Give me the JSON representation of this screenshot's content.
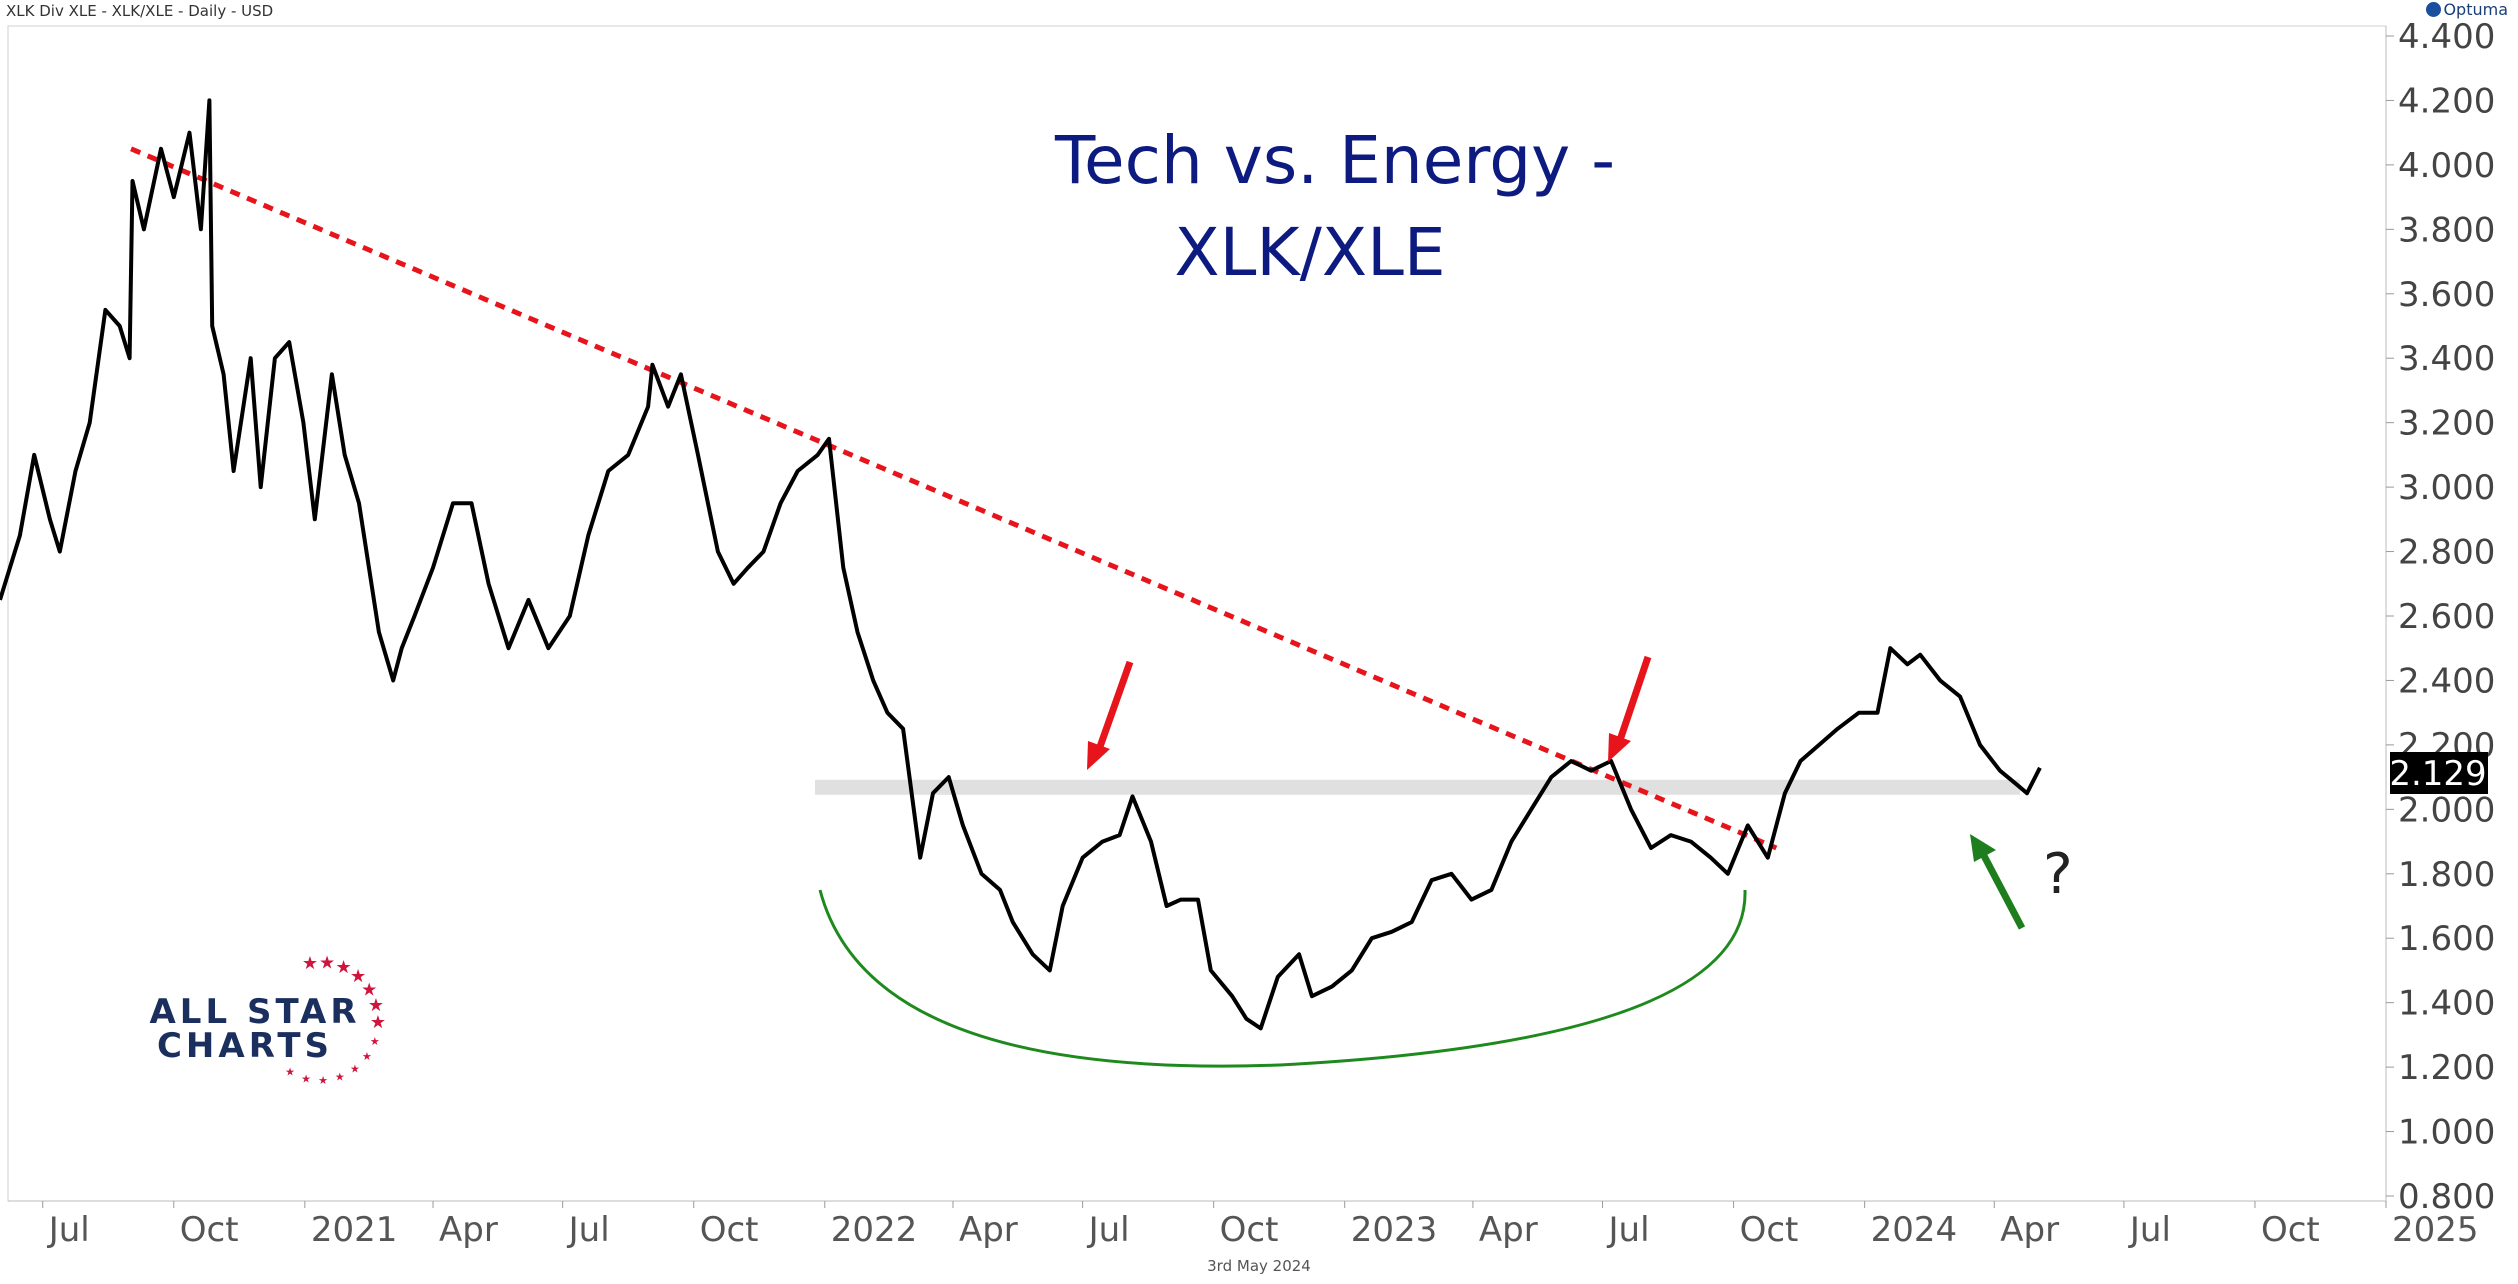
{
  "header": "XLK Div XLE - XLK/XLE - Daily - USD",
  "brand": "Optuma",
  "date_line": "3rd May 2024",
  "annotations": {
    "title_line1": "Tech vs. Energy -",
    "title_line2": "XLK/XLE",
    "question": "?"
  },
  "logo": {
    "line1": "ALL STAR",
    "line2": "CHARTS"
  },
  "colors": {
    "line": "#000000",
    "trend": "#e8141b",
    "arc": "#1e8a1e",
    "title": "#0d1a80",
    "up_arrow": "#1e7e1e",
    "band": "#e0e0e0",
    "logo": "#1b2f5e",
    "stars": "#d0143c"
  },
  "chart_data": {
    "type": "line",
    "title": "Tech vs. Energy - XLK/XLE",
    "ylim": [
      0.8,
      4.4
    ],
    "y_ticks": [
      "4.400",
      "4.200",
      "4.000",
      "3.800",
      "3.600",
      "3.400",
      "3.200",
      "3.000",
      "2.800",
      "2.600",
      "2.400",
      "2.200",
      "2.000",
      "1.800",
      "1.600",
      "1.400",
      "1.200",
      "1.000",
      "0.800"
    ],
    "x_ticks": [
      "Jul",
      "Oct",
      "2021",
      "Apr",
      "Jul",
      "Oct",
      "2022",
      "Apr",
      "Jul",
      "Oct",
      "2023",
      "Apr",
      "Jul",
      "Oct",
      "2024",
      "Apr",
      "Jul",
      "Oct",
      "2025"
    ],
    "last_value": "2.129",
    "support_level": 2.07,
    "trendline": [
      {
        "x": "2020-09-01",
        "y": 4.05
      },
      {
        "x": "2023-10-31",
        "y": 1.88
      }
    ],
    "series": [
      {
        "points": [
          [
            "2020-06-01",
            2.65
          ],
          [
            "2020-06-15",
            2.85
          ],
          [
            "2020-06-25",
            3.1
          ],
          [
            "2020-07-06",
            2.9
          ],
          [
            "2020-07-13",
            2.8
          ],
          [
            "2020-07-24",
            3.05
          ],
          [
            "2020-08-03",
            3.2
          ],
          [
            "2020-08-14",
            3.55
          ],
          [
            "2020-08-24",
            3.5
          ],
          [
            "2020-08-31",
            3.4
          ],
          [
            "2020-09-02",
            3.95
          ],
          [
            "2020-09-10",
            3.8
          ],
          [
            "2020-09-22",
            4.05
          ],
          [
            "2020-10-01",
            3.9
          ],
          [
            "2020-10-12",
            4.1
          ],
          [
            "2020-10-20",
            3.8
          ],
          [
            "2020-10-26",
            4.2
          ],
          [
            "2020-10-28",
            3.5
          ],
          [
            "2020-11-05",
            3.35
          ],
          [
            "2020-11-12",
            3.05
          ],
          [
            "2020-11-24",
            3.4
          ],
          [
            "2020-12-01",
            3.0
          ],
          [
            "2020-12-11",
            3.4
          ],
          [
            "2020-12-21",
            3.45
          ],
          [
            "2020-12-31",
            3.2
          ],
          [
            "2021-01-08",
            2.9
          ],
          [
            "2021-01-20",
            3.35
          ],
          [
            "2021-01-29",
            3.1
          ],
          [
            "2021-02-08",
            2.95
          ],
          [
            "2021-02-22",
            2.55
          ],
          [
            "2021-03-04",
            2.4
          ],
          [
            "2021-03-10",
            2.5
          ],
          [
            "2021-03-19",
            2.6
          ],
          [
            "2021-04-01",
            2.75
          ],
          [
            "2021-04-15",
            2.95
          ],
          [
            "2021-04-28",
            2.95
          ],
          [
            "2021-05-10",
            2.7
          ],
          [
            "2021-05-24",
            2.5
          ],
          [
            "2021-06-07",
            2.65
          ],
          [
            "2021-06-21",
            2.5
          ],
          [
            "2021-07-06",
            2.6
          ],
          [
            "2021-07-19",
            2.85
          ],
          [
            "2021-08-02",
            3.05
          ],
          [
            "2021-08-16",
            3.1
          ],
          [
            "2021-08-30",
            3.25
          ],
          [
            "2021-09-02",
            3.38
          ],
          [
            "2021-09-13",
            3.25
          ],
          [
            "2021-09-22",
            3.35
          ],
          [
            "2021-10-04",
            3.1
          ],
          [
            "2021-10-18",
            2.8
          ],
          [
            "2021-10-29",
            2.7
          ],
          [
            "2021-11-08",
            2.75
          ],
          [
            "2021-11-19",
            2.8
          ],
          [
            "2021-12-01",
            2.95
          ],
          [
            "2021-12-13",
            3.05
          ],
          [
            "2021-12-27",
            3.1
          ],
          [
            "2022-01-04",
            3.15
          ],
          [
            "2022-01-14",
            2.75
          ],
          [
            "2022-01-24",
            2.55
          ],
          [
            "2022-02-04",
            2.4
          ],
          [
            "2022-02-14",
            2.3
          ],
          [
            "2022-02-25",
            2.25
          ],
          [
            "2022-03-09",
            1.85
          ],
          [
            "2022-03-18",
            2.05
          ],
          [
            "2022-03-29",
            2.1
          ],
          [
            "2022-04-08",
            1.95
          ],
          [
            "2022-04-21",
            1.8
          ],
          [
            "2022-05-04",
            1.75
          ],
          [
            "2022-05-13",
            1.65
          ],
          [
            "2022-05-27",
            1.55
          ],
          [
            "2022-06-08",
            1.5
          ],
          [
            "2022-06-17",
            1.7
          ],
          [
            "2022-07-01",
            1.85
          ],
          [
            "2022-07-15",
            1.9
          ],
          [
            "2022-07-27",
            1.92
          ],
          [
            "2022-08-05",
            2.04
          ],
          [
            "2022-08-18",
            1.9
          ],
          [
            "2022-08-29",
            1.7
          ],
          [
            "2022-09-08",
            1.72
          ],
          [
            "2022-09-20",
            1.72
          ],
          [
            "2022-09-29",
            1.5
          ],
          [
            "2022-10-14",
            1.42
          ],
          [
            "2022-10-24",
            1.35
          ],
          [
            "2022-11-03",
            1.32
          ],
          [
            "2022-11-15",
            1.48
          ],
          [
            "2022-11-30",
            1.55
          ],
          [
            "2022-12-09",
            1.42
          ],
          [
            "2022-12-23",
            1.45
          ],
          [
            "2023-01-06",
            1.5
          ],
          [
            "2023-01-20",
            1.6
          ],
          [
            "2023-02-03",
            1.62
          ],
          [
            "2023-02-17",
            1.65
          ],
          [
            "2023-03-03",
            1.78
          ],
          [
            "2023-03-17",
            1.8
          ],
          [
            "2023-03-31",
            1.72
          ],
          [
            "2023-04-14",
            1.75
          ],
          [
            "2023-04-28",
            1.9
          ],
          [
            "2023-05-12",
            2.0
          ],
          [
            "2023-05-26",
            2.1
          ],
          [
            "2023-06-09",
            2.15
          ],
          [
            "2023-06-23",
            2.12
          ],
          [
            "2023-07-07",
            2.15
          ],
          [
            "2023-07-21",
            2.0
          ],
          [
            "2023-08-04",
            1.88
          ],
          [
            "2023-08-18",
            1.92
          ],
          [
            "2023-09-01",
            1.9
          ],
          [
            "2023-09-15",
            1.85
          ],
          [
            "2023-09-27",
            1.8
          ],
          [
            "2023-10-11",
            1.95
          ],
          [
            "2023-10-25",
            1.85
          ],
          [
            "2023-11-06",
            2.05
          ],
          [
            "2023-11-17",
            2.15
          ],
          [
            "2023-11-30",
            2.2
          ],
          [
            "2023-12-13",
            2.25
          ],
          [
            "2023-12-28",
            2.3
          ],
          [
            "2024-01-10",
            2.3
          ],
          [
            "2024-01-19",
            2.5
          ],
          [
            "2024-01-31",
            2.45
          ],
          [
            "2024-02-09",
            2.48
          ],
          [
            "2024-02-23",
            2.4
          ],
          [
            "2024-03-08",
            2.35
          ],
          [
            "2024-03-22",
            2.2
          ],
          [
            "2024-04-05",
            2.12
          ],
          [
            "2024-04-16",
            2.08
          ],
          [
            "2024-04-24",
            2.05
          ],
          [
            "2024-05-03",
            2.129
          ]
        ]
      }
    ]
  }
}
